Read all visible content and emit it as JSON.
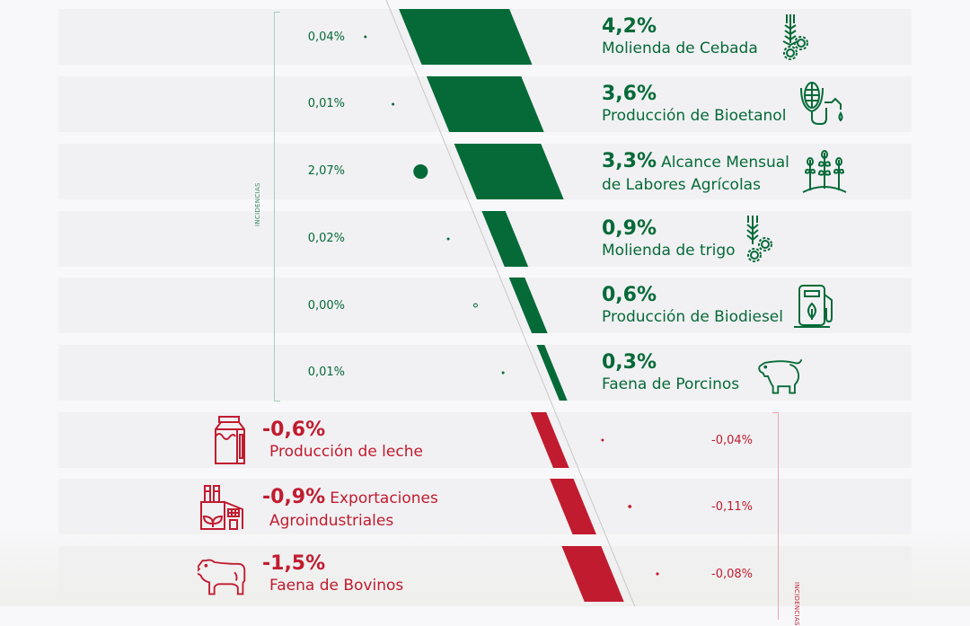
{
  "chart_data": {
    "type": "bar",
    "title": "",
    "incidence_axis_label": "INCIDENCIAS",
    "colors": {
      "positive": "#066a38",
      "negative": "#c11b2f"
    },
    "positive": [
      {
        "category": "Molienda de Cebada",
        "value": 4.2,
        "value_label": "4,2%",
        "incidence": 0.04,
        "incidence_label": "0,04%",
        "icon": "barley-gears-icon"
      },
      {
        "category": "Producción de Bioetanol",
        "value": 3.6,
        "value_label": "3,6%",
        "incidence": 0.01,
        "incidence_label": "0,01%",
        "icon": "corn-fuel-pump-icon"
      },
      {
        "category": "Alcance Mensual de Labores Agrícolas",
        "value": 3.3,
        "value_label": "3,3%",
        "incidence": 2.07,
        "incidence_label": "2,07%",
        "icon": "crops-icon"
      },
      {
        "category": "Molienda de trigo",
        "value": 0.9,
        "value_label": "0,9%",
        "incidence": 0.02,
        "incidence_label": "0,02%",
        "icon": "wheat-gears-icon"
      },
      {
        "category": "Producción de Biodiesel",
        "value": 0.6,
        "value_label": "0,6%",
        "incidence": 0.0,
        "incidence_label": "0,00%",
        "icon": "bio-fuel-pump-icon"
      },
      {
        "category": "Faena de Porcinos",
        "value": 0.3,
        "value_label": "0,3%",
        "incidence": 0.01,
        "incidence_label": "0,01%",
        "icon": "pig-icon"
      }
    ],
    "negative": [
      {
        "category": "Producción de leche",
        "value": -0.6,
        "value_label": "-0,6%",
        "incidence": -0.04,
        "incidence_label": "-0,04%",
        "icon": "milk-carton-icon"
      },
      {
        "category": "Exportaciones Agroindustriales",
        "value": -0.9,
        "value_label": "-0,9%",
        "incidence": -0.11,
        "incidence_label": "-0,11%",
        "icon": "factory-icon"
      },
      {
        "category": "Faena de Bovinos",
        "value": -1.5,
        "value_label": "-1,5%",
        "incidence": -0.08,
        "incidence_label": "-0,08%",
        "icon": "cow-icon"
      }
    ]
  },
  "labels": {
    "p0": {
      "pct": "4,2%",
      "name": "Molienda de Cebada"
    },
    "p1": {
      "pct": "3,6%",
      "name": "Producción de Bioetanol"
    },
    "p2": {
      "pct": "3,3%",
      "name_a": "Alcance Mensual",
      "name_b": "de Labores Agrícolas"
    },
    "p3": {
      "pct": "0,9%",
      "name": "Molienda de trigo"
    },
    "p4": {
      "pct": "0,6%",
      "name": "Producción de Biodiesel"
    },
    "p5": {
      "pct": "0,3%",
      "name": "Faena de Porcinos"
    },
    "n0": {
      "pct": "-0,6%",
      "name": "Producción de leche"
    },
    "n1": {
      "pct": "-0,9%",
      "name_a": "Exportaciones",
      "name_b": "Agroindustriales"
    },
    "n2": {
      "pct": "-1,5%",
      "name": "Faena de Bovinos"
    }
  },
  "incidences": {
    "p0": "0,04%",
    "p1": "0,01%",
    "p2": "2,07%",
    "p3": "0,02%",
    "p4": "0,00%",
    "p5": "0,01%",
    "n0": "-0,04%",
    "n1": "-0,11%",
    "n2": "-0,08%"
  },
  "axis": {
    "incidence_label_pos": "INCIDENCIAS",
    "incidence_label_neg": "INCIDENCIAS"
  }
}
